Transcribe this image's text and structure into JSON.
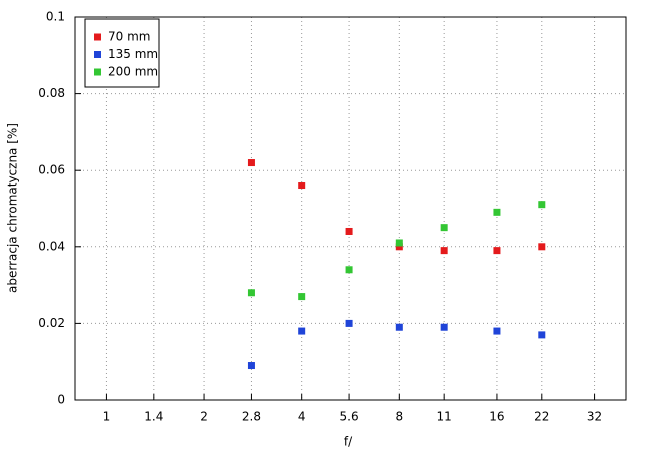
{
  "chart_data": {
    "type": "scatter",
    "x_label": "f/",
    "y_label": "aberracja chromatyczna [%]",
    "x_scale": "log",
    "xlim": [
      0.8,
      40
    ],
    "xticks": [
      1,
      1.4,
      2,
      2.8,
      4,
      5.6,
      8,
      11,
      16,
      22,
      32
    ],
    "ylim": [
      0,
      0.1
    ],
    "yticks": [
      0,
      0.02,
      0.04,
      0.06,
      0.08,
      0.1
    ],
    "grid": true,
    "legend": "top-left",
    "x": [
      2.8,
      4,
      5.6,
      8,
      11,
      16,
      22
    ],
    "series": [
      {
        "name": "70 mm",
        "color": "#e41a1c",
        "values": [
          0.062,
          0.056,
          0.044,
          0.04,
          0.039,
          0.039,
          0.04
        ]
      },
      {
        "name": "135 mm",
        "color": "#1f44d8",
        "values": [
          0.009,
          0.018,
          0.02,
          0.019,
          0.019,
          0.018,
          0.017
        ]
      },
      {
        "name": "200 mm",
        "color": "#33c633",
        "values": [
          0.028,
          0.027,
          0.034,
          0.041,
          0.045,
          0.049,
          0.051
        ]
      }
    ]
  }
}
